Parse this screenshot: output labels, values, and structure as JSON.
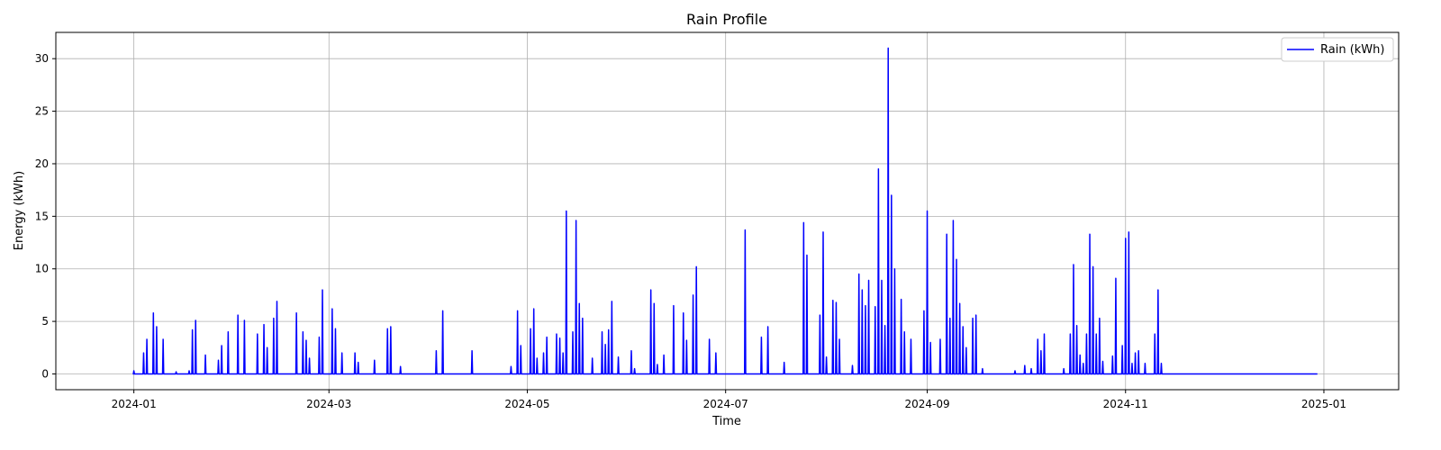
{
  "chart_data": {
    "type": "line",
    "title": "Rain Profile",
    "xlabel": "Time",
    "ylabel": "Energy (kWh)",
    "xlim": [
      "2023-12-08",
      "2025-01-24"
    ],
    "ylim": [
      -1.5,
      32.5
    ],
    "x_ticks": [
      "2024-01",
      "2024-03",
      "2024-05",
      "2024-07",
      "2024-09",
      "2024-11",
      "2025-01"
    ],
    "y_ticks": [
      0,
      5,
      10,
      15,
      20,
      25,
      30
    ],
    "grid": true,
    "legend_position": "top-right",
    "color": "#0000ff",
    "series": [
      {
        "name": "Rain (kWh)",
        "points": [
          [
            "2024-01-01",
            0.0
          ],
          [
            "2024-01-01",
            0.3
          ],
          [
            "2024-01-02",
            0.0
          ],
          [
            "2024-01-04",
            2.0
          ],
          [
            "2024-01-04",
            0.0
          ],
          [
            "2024-01-05",
            3.3
          ],
          [
            "2024-01-05",
            0.5
          ],
          [
            "2024-01-06",
            2.8
          ],
          [
            "2024-01-07",
            5.8
          ],
          [
            "2024-01-07",
            1.0
          ],
          [
            "2024-01-08",
            4.5
          ],
          [
            "2024-01-08",
            0.0
          ],
          [
            "2024-01-09",
            1.8
          ],
          [
            "2024-01-10",
            3.3
          ],
          [
            "2024-01-10",
            0.0
          ],
          [
            "2024-01-14",
            0.2
          ],
          [
            "2024-01-14",
            0.0
          ],
          [
            "2024-01-18",
            0.3
          ],
          [
            "2024-01-18",
            0.0
          ],
          [
            "2024-01-30",
            4.3
          ],
          [
            "2024-01-30",
            0.0
          ],
          [
            "2024-01-31",
            5.1
          ],
          [
            "2024-01-31",
            0.0
          ],
          [
            "2024-02-03",
            1.8
          ],
          [
            "2024-02-03",
            0.0
          ],
          [
            "2024-02-07",
            1.3
          ],
          [
            "2024-02-07",
            0.0
          ],
          [
            "2024-02-08",
            2.7
          ],
          [
            "2024-02-09",
            0.5
          ],
          [
            "2024-02-10",
            4.0
          ],
          [
            "2024-02-10",
            0.0
          ],
          [
            "2024-02-13",
            5.6
          ],
          [
            "2024-02-13",
            0.3
          ],
          [
            "2024-02-15",
            5.1
          ],
          [
            "2024-02-15",
            0.0
          ],
          [
            "2024-02-19",
            3.8
          ],
          [
            "2024-02-19",
            0.0
          ],
          [
            "2024-02-21",
            4.7
          ],
          [
            "2024-02-21",
            0.5
          ],
          [
            "2024-02-22",
            2.5
          ],
          [
            "2024-02-22",
            0.0
          ],
          [
            "2024-02-24",
            5.3
          ],
          [
            "2024-02-25",
            6.9
          ],
          [
            "2024-02-25",
            0.0
          ],
          [
            "2024-03-02",
            5.8
          ],
          [
            "2024-03-02",
            0.0
          ],
          [
            "2024-03-04",
            4.0
          ],
          [
            "2024-03-05",
            3.2
          ],
          [
            "2024-03-05",
            0.0
          ],
          [
            "2024-03-06",
            1.5
          ],
          [
            "2024-03-06",
            0.0
          ],
          [
            "2024-03-09",
            3.5
          ],
          [
            "2024-03-09",
            0.0
          ],
          [
            "2024-03-11",
            8.0
          ],
          [
            "2024-03-11",
            0.0
          ],
          [
            "2024-03-14",
            6.2
          ],
          [
            "2024-03-15",
            4.3
          ],
          [
            "2024-03-15",
            0.0
          ],
          [
            "2024-03-17",
            2.0
          ],
          [
            "2024-03-17",
            0.0
          ],
          [
            "2024-03-21",
            2.0
          ],
          [
            "2024-03-21",
            0.0
          ],
          [
            "2024-03-22",
            1.1
          ],
          [
            "2024-03-22",
            0.0
          ],
          [
            "2024-03-27",
            1.3
          ],
          [
            "2024-03-27",
            0.0
          ],
          [
            "2024-04-03",
            1.3
          ],
          [
            "2024-04-03",
            0.0
          ],
          [
            "2024-04-06",
            4.3
          ],
          [
            "2024-04-07",
            4.5
          ],
          [
            "2024-04-07",
            0.0
          ],
          [
            "2024-04-10",
            0.7
          ],
          [
            "2024-04-10",
            0.0
          ],
          [
            "2024-04-21",
            2.2
          ],
          [
            "2024-04-21",
            0.0
          ],
          [
            "2024-04-23",
            6.0
          ],
          [
            "2024-04-24",
            0.2
          ],
          [
            "2024-04-24",
            0.0
          ],
          [
            "2024-05-02",
            2.2
          ],
          [
            "2024-05-02",
            0.0
          ],
          [
            "2024-05-14",
            6.0
          ],
          [
            "2024-05-15",
            2.7
          ],
          [
            "2024-05-15",
            0.0
          ],
          [
            "2024-05-19",
            4.3
          ],
          [
            "2024-05-19",
            0.0
          ],
          [
            "2024-05-20",
            6.2
          ],
          [
            "2024-05-21",
            1.5
          ],
          [
            "2024-05-21",
            0.0
          ],
          [
            "2024-05-23",
            2.0
          ],
          [
            "2024-05-24",
            3.5
          ],
          [
            "2024-05-24",
            0.0
          ],
          [
            "2024-05-28",
            3.8
          ],
          [
            "2024-05-29",
            3.4
          ],
          [
            "2024-05-30",
            2.0
          ],
          [
            "2024-06-01",
            15.5
          ],
          [
            "2024-06-01",
            0.0
          ],
          [
            "2024-06-03",
            4.0
          ],
          [
            "2024-06-04",
            14.6
          ],
          [
            "2024-06-05",
            6.7
          ],
          [
            "2024-06-06",
            5.3
          ],
          [
            "2024-06-06",
            0.0
          ],
          [
            "2024-06-09",
            1.5
          ],
          [
            "2024-06-09",
            0.0
          ],
          [
            "2024-06-12",
            4.0
          ],
          [
            "2024-06-13",
            2.8
          ],
          [
            "2024-06-14",
            4.2
          ],
          [
            "2024-06-15",
            6.9
          ],
          [
            "2024-06-15",
            0.0
          ],
          [
            "2024-06-17",
            1.6
          ],
          [
            "2024-06-17",
            0.0
          ],
          [
            "2024-06-22",
            2.2
          ],
          [
            "2024-06-22",
            0.0
          ],
          [
            "2024-06-29",
            8.0
          ],
          [
            "2024-06-30",
            6.7
          ],
          [
            "2024-06-30",
            0.0
          ],
          [
            "2024-07-03",
            1.8
          ],
          [
            "2024-07-03",
            0.0
          ],
          [
            "2024-07-06",
            6.5
          ],
          [
            "2024-07-06",
            0.0
          ],
          [
            "2024-07-09",
            5.8
          ],
          [
            "2024-07-10",
            3.2
          ],
          [
            "2024-07-10",
            0.0
          ],
          [
            "2024-07-12",
            7.5
          ],
          [
            "2024-07-13",
            10.2
          ],
          [
            "2024-07-13",
            0.0
          ],
          [
            "2024-07-17",
            3.3
          ],
          [
            "2024-07-17",
            0.0
          ],
          [
            "2024-07-19",
            2.0
          ],
          [
            "2024-07-19",
            0.0
          ],
          [
            "2024-07-29",
            13.7
          ],
          [
            "2024-07-29",
            0.0
          ],
          [
            "2024-08-03",
            3.5
          ],
          [
            "2024-08-03",
            0.0
          ],
          [
            "2024-08-05",
            4.5
          ],
          [
            "2024-08-05",
            0.0
          ],
          [
            "2024-08-10",
            1.1
          ],
          [
            "2024-08-10",
            0.0
          ],
          [
            "2024-08-17",
            14.3
          ],
          [
            "2024-08-18",
            11.3
          ],
          [
            "2024-08-18",
            0.0
          ],
          [
            "2024-08-22",
            13.5
          ],
          [
            "2024-08-23",
            1.6
          ],
          [
            "2024-08-24",
            7.0
          ],
          [
            "2024-08-25",
            6.8
          ],
          [
            "2024-08-26",
            3.3
          ],
          [
            "2024-08-26",
            0.0
          ],
          [
            "2024-08-30",
            0.8
          ],
          [
            "2024-08-30",
            0.0
          ],
          [
            "2024-09-01",
            9.5
          ],
          [
            "2024-09-02",
            8.0
          ],
          [
            "2024-09-03",
            6.5
          ],
          [
            "2024-09-04",
            8.9
          ],
          [
            "2024-09-05",
            2.0
          ],
          [
            "2024-09-06",
            6.4
          ],
          [
            "2024-09-07",
            19.5
          ],
          [
            "2024-09-08",
            8.9
          ],
          [
            "2024-09-09",
            4.6
          ],
          [
            "2024-09-10",
            31.0
          ],
          [
            "2024-09-10",
            17.0
          ],
          [
            "2024-09-11",
            3.0
          ],
          [
            "2024-09-12",
            10.0
          ],
          [
            "2024-09-13",
            2.0
          ],
          [
            "2024-09-14",
            7.0
          ],
          [
            "2024-09-15",
            4.0
          ],
          [
            "2024-09-15",
            0.0
          ],
          [
            "2024-09-18",
            3.3
          ],
          [
            "2024-09-18",
            0.0
          ],
          [
            "2024-09-23",
            6.0
          ],
          [
            "2024-09-24",
            15.5
          ],
          [
            "2024-09-24",
            0.0
          ],
          [
            "2024-07-01",
            0.0
          ]
        ]
      }
    ]
  },
  "peaks": [
    [
      "2024-01-01",
      0.3
    ],
    [
      "2024-01-04",
      2.0
    ],
    [
      "2024-01-05",
      3.3
    ],
    [
      "2024-01-07",
      5.8
    ],
    [
      "2024-01-08",
      4.5
    ],
    [
      "2024-01-10",
      3.3
    ],
    [
      "2024-01-14",
      0.2
    ],
    [
      "2024-01-18",
      0.3
    ],
    [
      "2024-01-19",
      4.2
    ],
    [
      "2024-01-20",
      5.1
    ],
    [
      "2024-01-23",
      1.8
    ],
    [
      "2024-01-27",
      1.3
    ],
    [
      "2024-01-28",
      2.7
    ],
    [
      "2024-01-30",
      4.0
    ],
    [
      "2024-02-02",
      5.6
    ],
    [
      "2024-02-04",
      5.1
    ],
    [
      "2024-02-08",
      3.8
    ],
    [
      "2024-02-10",
      4.7
    ],
    [
      "2024-02-11",
      2.5
    ],
    [
      "2024-02-13",
      5.3
    ],
    [
      "2024-02-14",
      6.9
    ],
    [
      "2024-02-20",
      5.8
    ],
    [
      "2024-02-22",
      4.0
    ],
    [
      "2024-02-23",
      3.2
    ],
    [
      "2024-02-24",
      1.5
    ],
    [
      "2024-02-27",
      3.5
    ],
    [
      "2024-02-28",
      8.0
    ],
    [
      "2024-03-02",
      6.2
    ],
    [
      "2024-03-03",
      4.3
    ],
    [
      "2024-03-05",
      2.0
    ],
    [
      "2024-03-09",
      2.0
    ],
    [
      "2024-03-10",
      1.1
    ],
    [
      "2024-03-15",
      1.3
    ],
    [
      "2024-03-19",
      4.3
    ],
    [
      "2024-03-20",
      4.5
    ],
    [
      "2024-03-23",
      0.7
    ],
    [
      "2024-04-03",
      2.2
    ],
    [
      "2024-04-05",
      6.0
    ],
    [
      "2024-04-14",
      2.2
    ],
    [
      "2024-04-26",
      0.7
    ],
    [
      "2024-04-28",
      6.0
    ],
    [
      "2024-04-29",
      2.7
    ],
    [
      "2024-05-02",
      4.3
    ],
    [
      "2024-05-03",
      6.2
    ],
    [
      "2024-05-04",
      1.5
    ],
    [
      "2024-05-06",
      2.0
    ],
    [
      "2024-05-07",
      3.5
    ],
    [
      "2024-05-10",
      3.8
    ],
    [
      "2024-05-11",
      3.4
    ],
    [
      "2024-05-12",
      2.0
    ],
    [
      "2024-05-13",
      15.5
    ],
    [
      "2024-05-15",
      4.0
    ],
    [
      "2024-05-16",
      14.6
    ],
    [
      "2024-05-17",
      6.7
    ],
    [
      "2024-05-18",
      5.3
    ],
    [
      "2024-05-21",
      1.5
    ],
    [
      "2024-05-24",
      4.0
    ],
    [
      "2024-05-25",
      2.8
    ],
    [
      "2024-05-26",
      4.2
    ],
    [
      "2024-05-27",
      6.9
    ],
    [
      "2024-05-29",
      1.6
    ],
    [
      "2024-06-02",
      2.2
    ],
    [
      "2024-06-03",
      0.5
    ],
    [
      "2024-06-08",
      8.0
    ],
    [
      "2024-06-09",
      6.7
    ],
    [
      "2024-06-10",
      0.9
    ],
    [
      "2024-06-12",
      1.8
    ],
    [
      "2024-06-15",
      6.5
    ],
    [
      "2024-06-18",
      5.8
    ],
    [
      "2024-06-19",
      3.2
    ],
    [
      "2024-06-21",
      7.5
    ],
    [
      "2024-06-22",
      10.2
    ],
    [
      "2024-06-26",
      3.3
    ],
    [
      "2024-06-28",
      2.0
    ],
    [
      "2024-07-07",
      13.7
    ],
    [
      "2024-07-12",
      3.5
    ],
    [
      "2024-07-14",
      4.5
    ],
    [
      "2024-07-19",
      1.1
    ],
    [
      "2024-07-25",
      14.4
    ],
    [
      "2024-07-26",
      11.3
    ],
    [
      "2024-07-30",
      5.6
    ],
    [
      "2024-07-31",
      13.5
    ],
    [
      "2024-08-01",
      1.6
    ],
    [
      "2024-08-03",
      7.0
    ],
    [
      "2024-08-04",
      6.8
    ],
    [
      "2024-08-05",
      3.3
    ],
    [
      "2024-08-09",
      0.8
    ],
    [
      "2024-08-11",
      9.5
    ],
    [
      "2024-08-12",
      8.0
    ],
    [
      "2024-08-13",
      6.5
    ],
    [
      "2024-08-14",
      8.9
    ],
    [
      "2024-08-16",
      6.4
    ],
    [
      "2024-08-17",
      19.5
    ],
    [
      "2024-08-18",
      8.9
    ],
    [
      "2024-08-19",
      4.6
    ],
    [
      "2024-08-20",
      31.0
    ],
    [
      "2024-08-21",
      17.0
    ],
    [
      "2024-08-22",
      10.0
    ],
    [
      "2024-08-24",
      7.1
    ],
    [
      "2024-08-25",
      4.0
    ],
    [
      "2024-08-27",
      3.3
    ],
    [
      "2024-08-31",
      6.0
    ],
    [
      "2024-09-01",
      15.5
    ],
    [
      "2024-09-02",
      3.0
    ],
    [
      "2024-09-05",
      3.3
    ],
    [
      "2024-09-07",
      13.3
    ],
    [
      "2024-09-08",
      5.3
    ],
    [
      "2024-09-09",
      14.6
    ],
    [
      "2024-09-10",
      10.9
    ],
    [
      "2024-09-11",
      6.7
    ],
    [
      "2024-09-12",
      4.5
    ],
    [
      "2024-09-13",
      2.5
    ],
    [
      "2024-09-15",
      5.3
    ],
    [
      "2024-09-16",
      5.6
    ],
    [
      "2024-09-18",
      0.5
    ],
    [
      "2024-09-28",
      0.3
    ],
    [
      "2024-10-01",
      0.8
    ],
    [
      "2024-10-03",
      0.5
    ],
    [
      "2024-10-05",
      3.3
    ],
    [
      "2024-10-06",
      2.2
    ],
    [
      "2024-10-07",
      3.8
    ],
    [
      "2024-10-13",
      0.5
    ],
    [
      "2024-10-15",
      3.8
    ],
    [
      "2024-10-16",
      10.4
    ],
    [
      "2024-10-17",
      4.6
    ],
    [
      "2024-10-18",
      1.8
    ],
    [
      "2024-10-19",
      1.0
    ],
    [
      "2024-10-20",
      3.8
    ],
    [
      "2024-10-21",
      13.3
    ],
    [
      "2024-10-22",
      10.2
    ],
    [
      "2024-10-23",
      3.8
    ],
    [
      "2024-10-24",
      5.3
    ],
    [
      "2024-10-25",
      1.2
    ],
    [
      "2024-10-28",
      1.7
    ],
    [
      "2024-10-29",
      9.1
    ],
    [
      "2024-10-31",
      2.7
    ],
    [
      "2024-11-01",
      12.9
    ],
    [
      "2024-11-02",
      13.5
    ],
    [
      "2024-11-03",
      1.0
    ],
    [
      "2024-11-04",
      2.0
    ],
    [
      "2024-11-05",
      2.2
    ],
    [
      "2024-11-07",
      1.0
    ],
    [
      "2024-11-10",
      3.8
    ],
    [
      "2024-11-11",
      8.0
    ],
    [
      "2024-11-12",
      1.0
    ]
  ]
}
